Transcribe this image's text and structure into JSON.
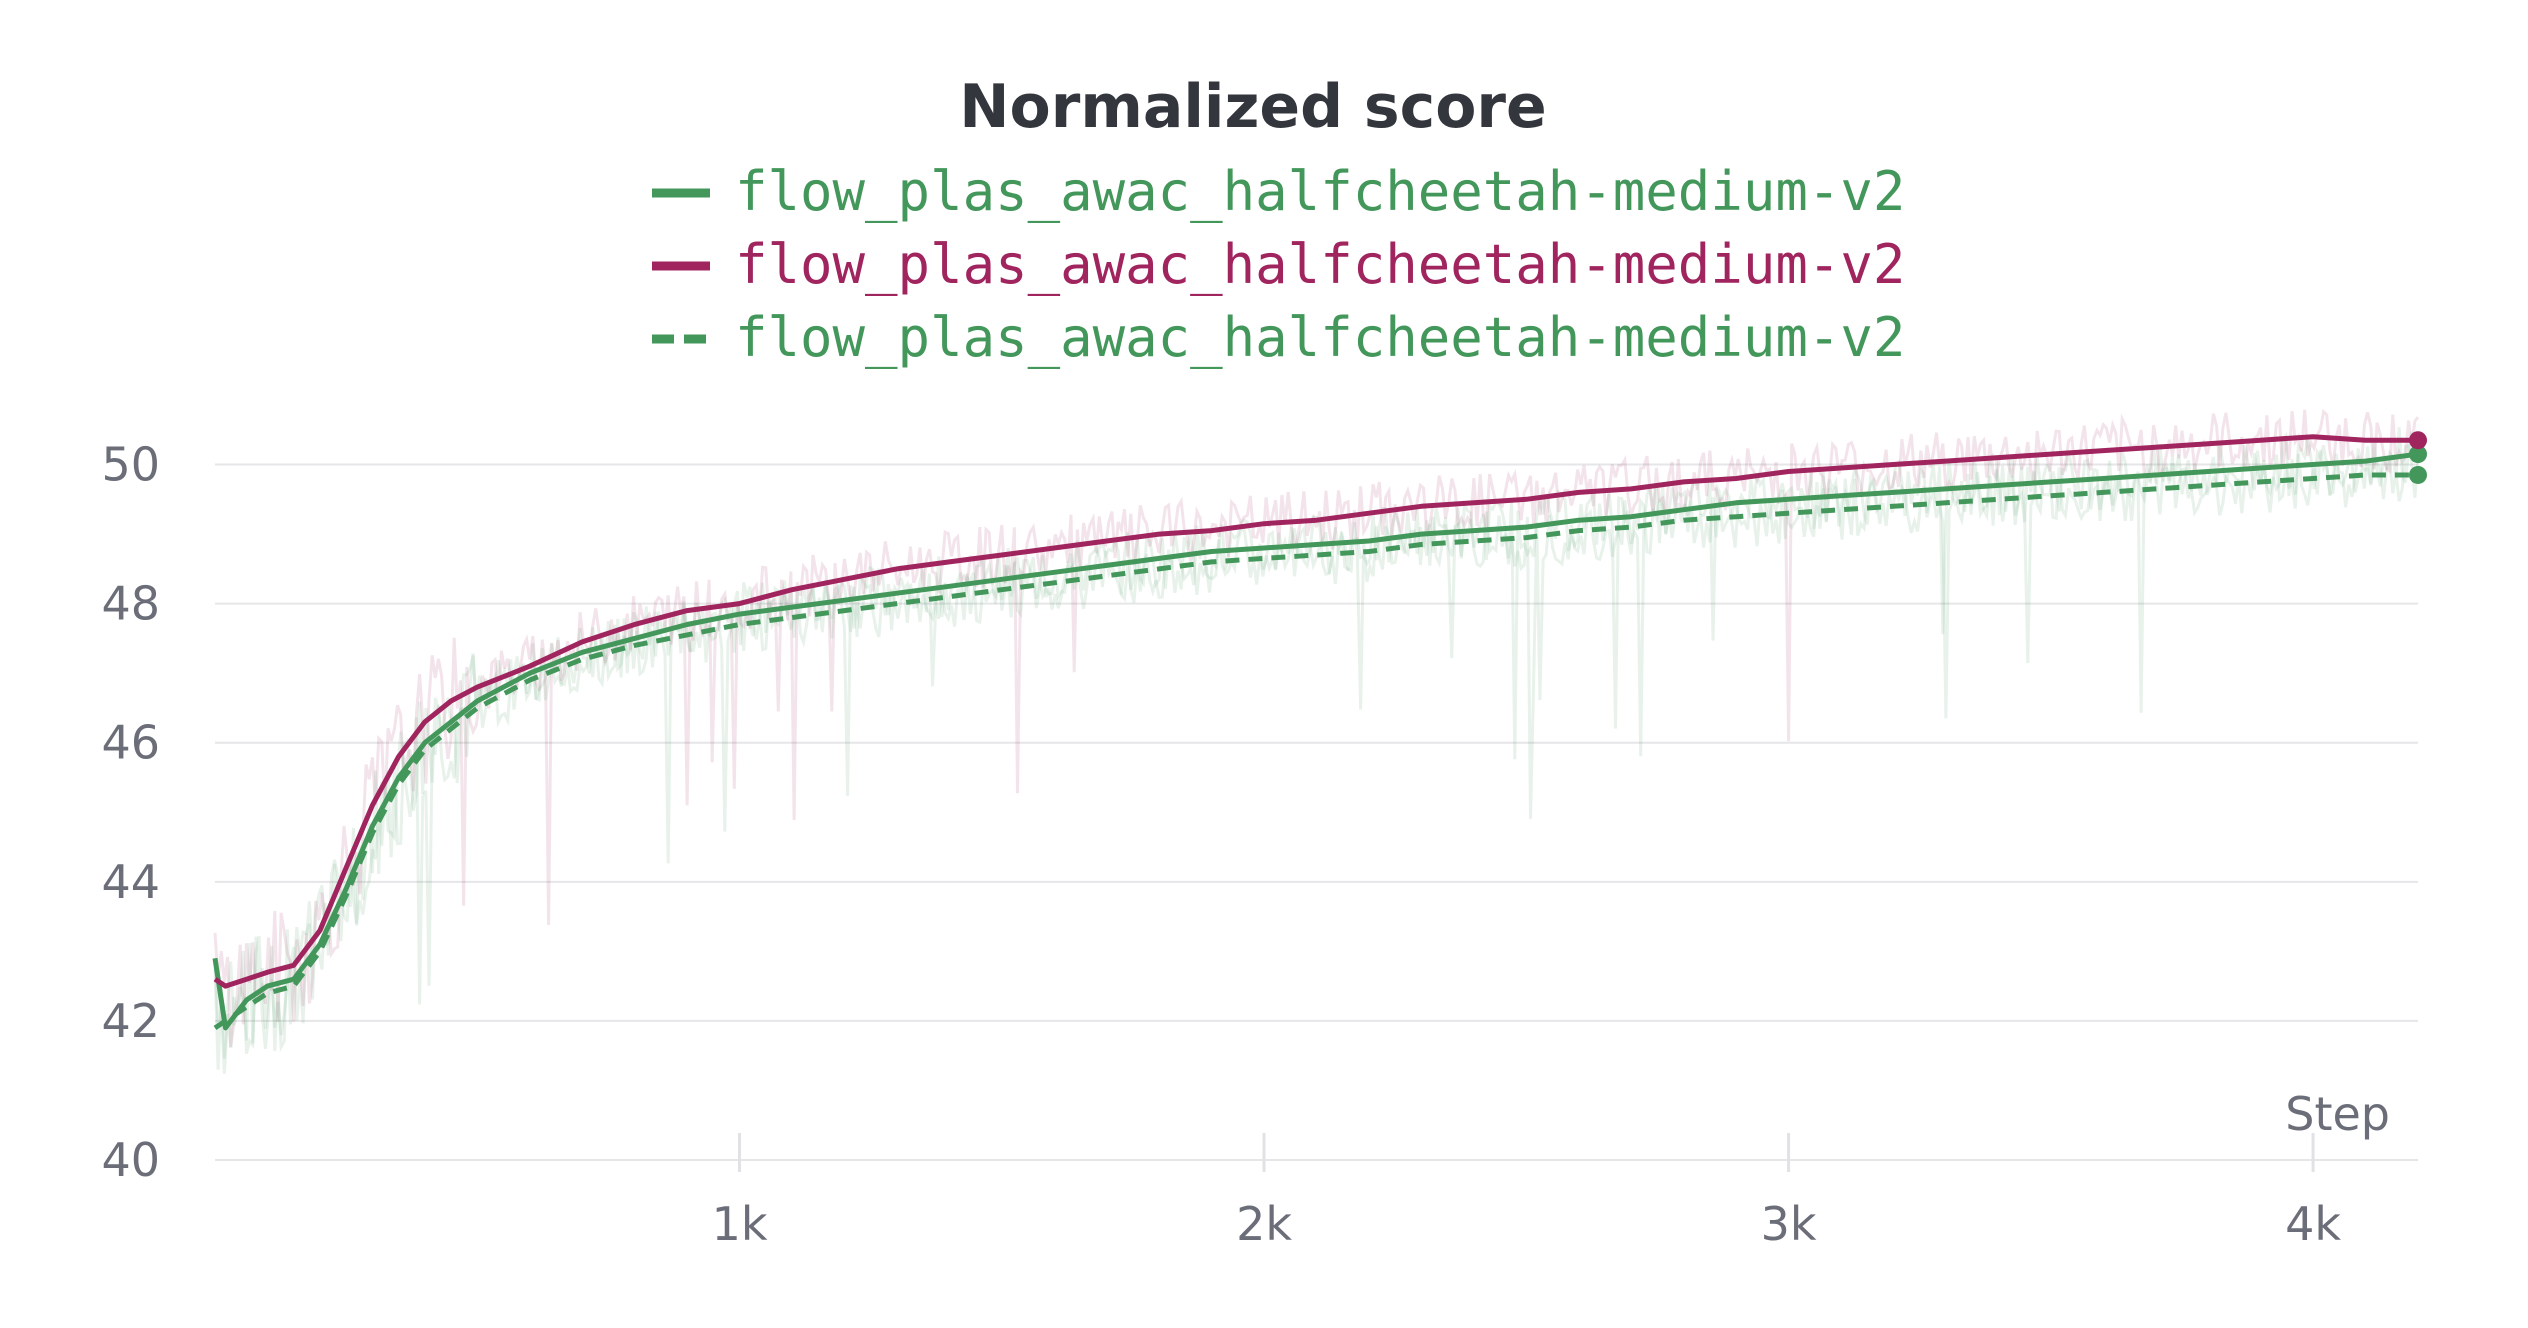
{
  "chart_data": {
    "type": "line",
    "title": "Normalized score",
    "xlabel": "Step",
    "ylabel": "",
    "xlim": [
      0,
      4200
    ],
    "ylim": [
      40,
      51
    ],
    "y_ticks": [
      40,
      42,
      44,
      46,
      48,
      50
    ],
    "x_ticks": [
      1000,
      2000,
      3000,
      4000
    ],
    "x_tick_labels": [
      "1k",
      "2k",
      "3k",
      "4k"
    ],
    "grid": true,
    "legend_position": "top",
    "series": [
      {
        "name": "flow_plas_awac_halfcheetah-medium-v2",
        "color": "#43975b",
        "dash": "solid",
        "x": [
          0,
          20,
          60,
          100,
          150,
          200,
          250,
          300,
          350,
          400,
          450,
          500,
          550,
          600,
          700,
          800,
          900,
          1000,
          1100,
          1200,
          1300,
          1400,
          1500,
          1600,
          1700,
          1800,
          1900,
          2000,
          2100,
          2200,
          2300,
          2400,
          2500,
          2600,
          2700,
          2800,
          2900,
          3000,
          3100,
          3200,
          3300,
          3400,
          3500,
          3600,
          3700,
          3800,
          3900,
          4000,
          4100,
          4200
        ],
        "y": [
          42.9,
          41.9,
          42.3,
          42.5,
          42.6,
          43.1,
          43.9,
          44.8,
          45.5,
          46.0,
          46.3,
          46.6,
          46.8,
          47.0,
          47.3,
          47.5,
          47.7,
          47.85,
          47.95,
          48.05,
          48.15,
          48.25,
          48.35,
          48.45,
          48.55,
          48.65,
          48.75,
          48.8,
          48.85,
          48.9,
          49.0,
          49.05,
          49.1,
          49.2,
          49.25,
          49.35,
          49.45,
          49.5,
          49.55,
          49.6,
          49.65,
          49.7,
          49.75,
          49.8,
          49.85,
          49.9,
          49.95,
          50.0,
          50.05,
          50.15
        ]
      },
      {
        "name": "flow_plas_awac_halfcheetah-medium-v2",
        "color": "#a0245e",
        "dash": "solid",
        "x": [
          0,
          20,
          60,
          100,
          150,
          200,
          250,
          300,
          350,
          400,
          450,
          500,
          550,
          600,
          700,
          800,
          900,
          1000,
          1100,
          1200,
          1300,
          1400,
          1500,
          1600,
          1700,
          1800,
          1900,
          2000,
          2100,
          2200,
          2300,
          2400,
          2500,
          2600,
          2700,
          2800,
          2900,
          3000,
          3100,
          3200,
          3300,
          3400,
          3500,
          3600,
          3700,
          3800,
          3900,
          4000,
          4100,
          4200
        ],
        "y": [
          42.6,
          42.5,
          42.6,
          42.7,
          42.8,
          43.3,
          44.2,
          45.1,
          45.8,
          46.3,
          46.6,
          46.8,
          46.95,
          47.1,
          47.45,
          47.7,
          47.9,
          48.0,
          48.2,
          48.35,
          48.5,
          48.6,
          48.7,
          48.8,
          48.9,
          49.0,
          49.05,
          49.15,
          49.2,
          49.3,
          49.4,
          49.45,
          49.5,
          49.6,
          49.65,
          49.75,
          49.8,
          49.9,
          49.95,
          50.0,
          50.05,
          50.1,
          50.15,
          50.2,
          50.25,
          50.3,
          50.35,
          50.4,
          50.35,
          50.35
        ]
      },
      {
        "name": "flow_plas_awac_halfcheetah-medium-v2",
        "color": "#43975b",
        "dash": "dashed",
        "x": [
          0,
          20,
          60,
          100,
          150,
          200,
          250,
          300,
          350,
          400,
          450,
          500,
          550,
          600,
          700,
          800,
          900,
          1000,
          1100,
          1200,
          1300,
          1400,
          1500,
          1600,
          1700,
          1800,
          1900,
          2000,
          2100,
          2200,
          2300,
          2400,
          2500,
          2600,
          2700,
          2800,
          2900,
          3000,
          3100,
          3200,
          3300,
          3400,
          3500,
          3600,
          3700,
          3800,
          3900,
          4000,
          4100,
          4200
        ],
        "y": [
          41.9,
          42.0,
          42.2,
          42.4,
          42.5,
          43.0,
          43.8,
          44.7,
          45.4,
          45.9,
          46.2,
          46.5,
          46.7,
          46.9,
          47.2,
          47.4,
          47.55,
          47.7,
          47.8,
          47.9,
          48.0,
          48.1,
          48.2,
          48.3,
          48.4,
          48.5,
          48.6,
          48.65,
          48.7,
          48.75,
          48.85,
          48.9,
          48.95,
          49.05,
          49.1,
          49.2,
          49.25,
          49.3,
          49.35,
          49.4,
          49.45,
          49.5,
          49.55,
          49.6,
          49.65,
          49.7,
          49.75,
          49.8,
          49.85,
          49.85
        ]
      }
    ]
  }
}
